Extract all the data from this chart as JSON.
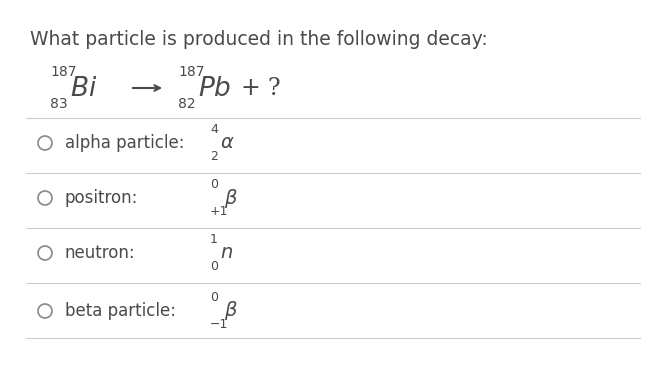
{
  "title": "What particle is produced in the following decay:",
  "bg_color": "#ffffff",
  "text_color": "#4a4a4a",
  "line_color": "#cccccc",
  "equation": {
    "bi_mass": "187",
    "bi_atomic": "83",
    "pb_mass": "187",
    "pb_atomic": "82"
  },
  "options": [
    {
      "label": "alpha particle:",
      "notation": "$^{4}_{2}\\\\alpha$"
    },
    {
      "label": "positron:",
      "notation": "$^{0}_{+1}\\\\beta$"
    },
    {
      "label": "neutron:",
      "notation": "$^{1}_{0}n$"
    },
    {
      "label": "beta particle:",
      "notation": "$^{0}_{-1}\\\\beta$"
    }
  ]
}
